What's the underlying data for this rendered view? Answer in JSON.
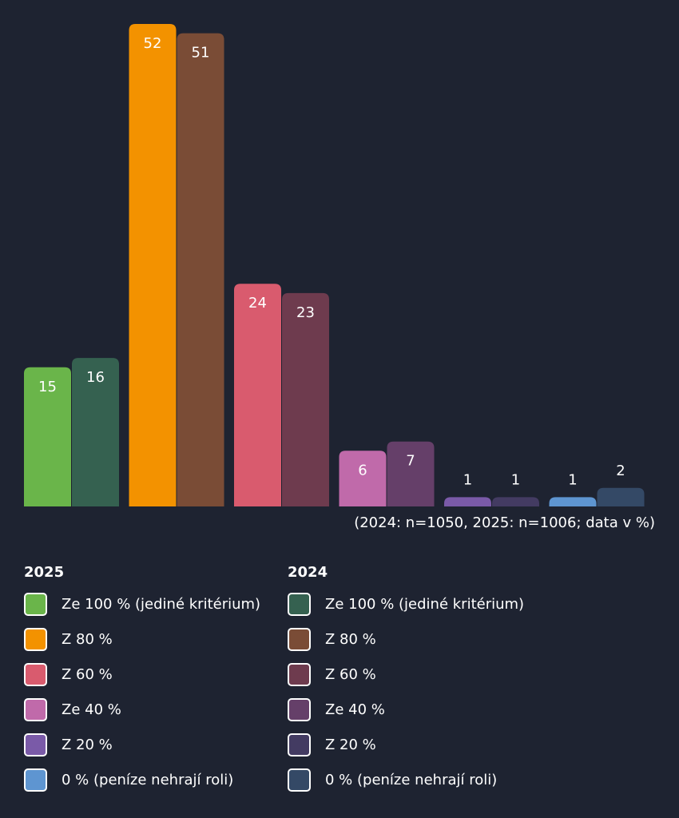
{
  "chart_data": {
    "type": "bar",
    "categories": [
      "Ze 100 % (jediné kritérium)",
      "Z 80 %",
      "Z 60 %",
      "Ze 40 %",
      "Z 20 %",
      "0 % (peníze nehrají roli)"
    ],
    "series": [
      {
        "name": "2025",
        "values": [
          15,
          52,
          24,
          6,
          1,
          1
        ],
        "colors": [
          "#6ab54a",
          "#f39200",
          "#d95b6e",
          "#c06aaa",
          "#7a5aa8",
          "#5e95d1"
        ]
      },
      {
        "name": "2024",
        "values": [
          16,
          51,
          23,
          7,
          1,
          2
        ],
        "colors": [
          "#356150",
          "#7a4c36",
          "#6e3b4e",
          "#653f69",
          "#433b62",
          "#344966"
        ]
      }
    ],
    "ylim": [
      0,
      52
    ],
    "note": "(2024: n=1050, 2025: n=1006; data v %)",
    "legend_placement": "bottom",
    "grid": false
  },
  "legend": [
    {
      "title": "2025",
      "items": [
        {
          "label": "Ze 100 % (jediné kritérium)",
          "color": "#6ab54a"
        },
        {
          "label": "Z 80 %",
          "color": "#f39200"
        },
        {
          "label": "Z 60 %",
          "color": "#d95b6e"
        },
        {
          "label": "Ze 40 %",
          "color": "#c06aaa"
        },
        {
          "label": "Z 20 %",
          "color": "#7a5aa8"
        },
        {
          "label": "0 % (peníze nehrají roli)",
          "color": "#5e95d1"
        }
      ]
    },
    {
      "title": "2024",
      "items": [
        {
          "label": "Ze 100 % (jediné kritérium)",
          "color": "#356150"
        },
        {
          "label": "Z 80 %",
          "color": "#7a4c36"
        },
        {
          "label": "Z 60 %",
          "color": "#6e3b4e"
        },
        {
          "label": "Ze 40 %",
          "color": "#653f69"
        },
        {
          "label": "Z 20 %",
          "color": "#433b62"
        },
        {
          "label": "0 % (peníze nehrají roli)",
          "color": "#344966"
        }
      ]
    }
  ]
}
